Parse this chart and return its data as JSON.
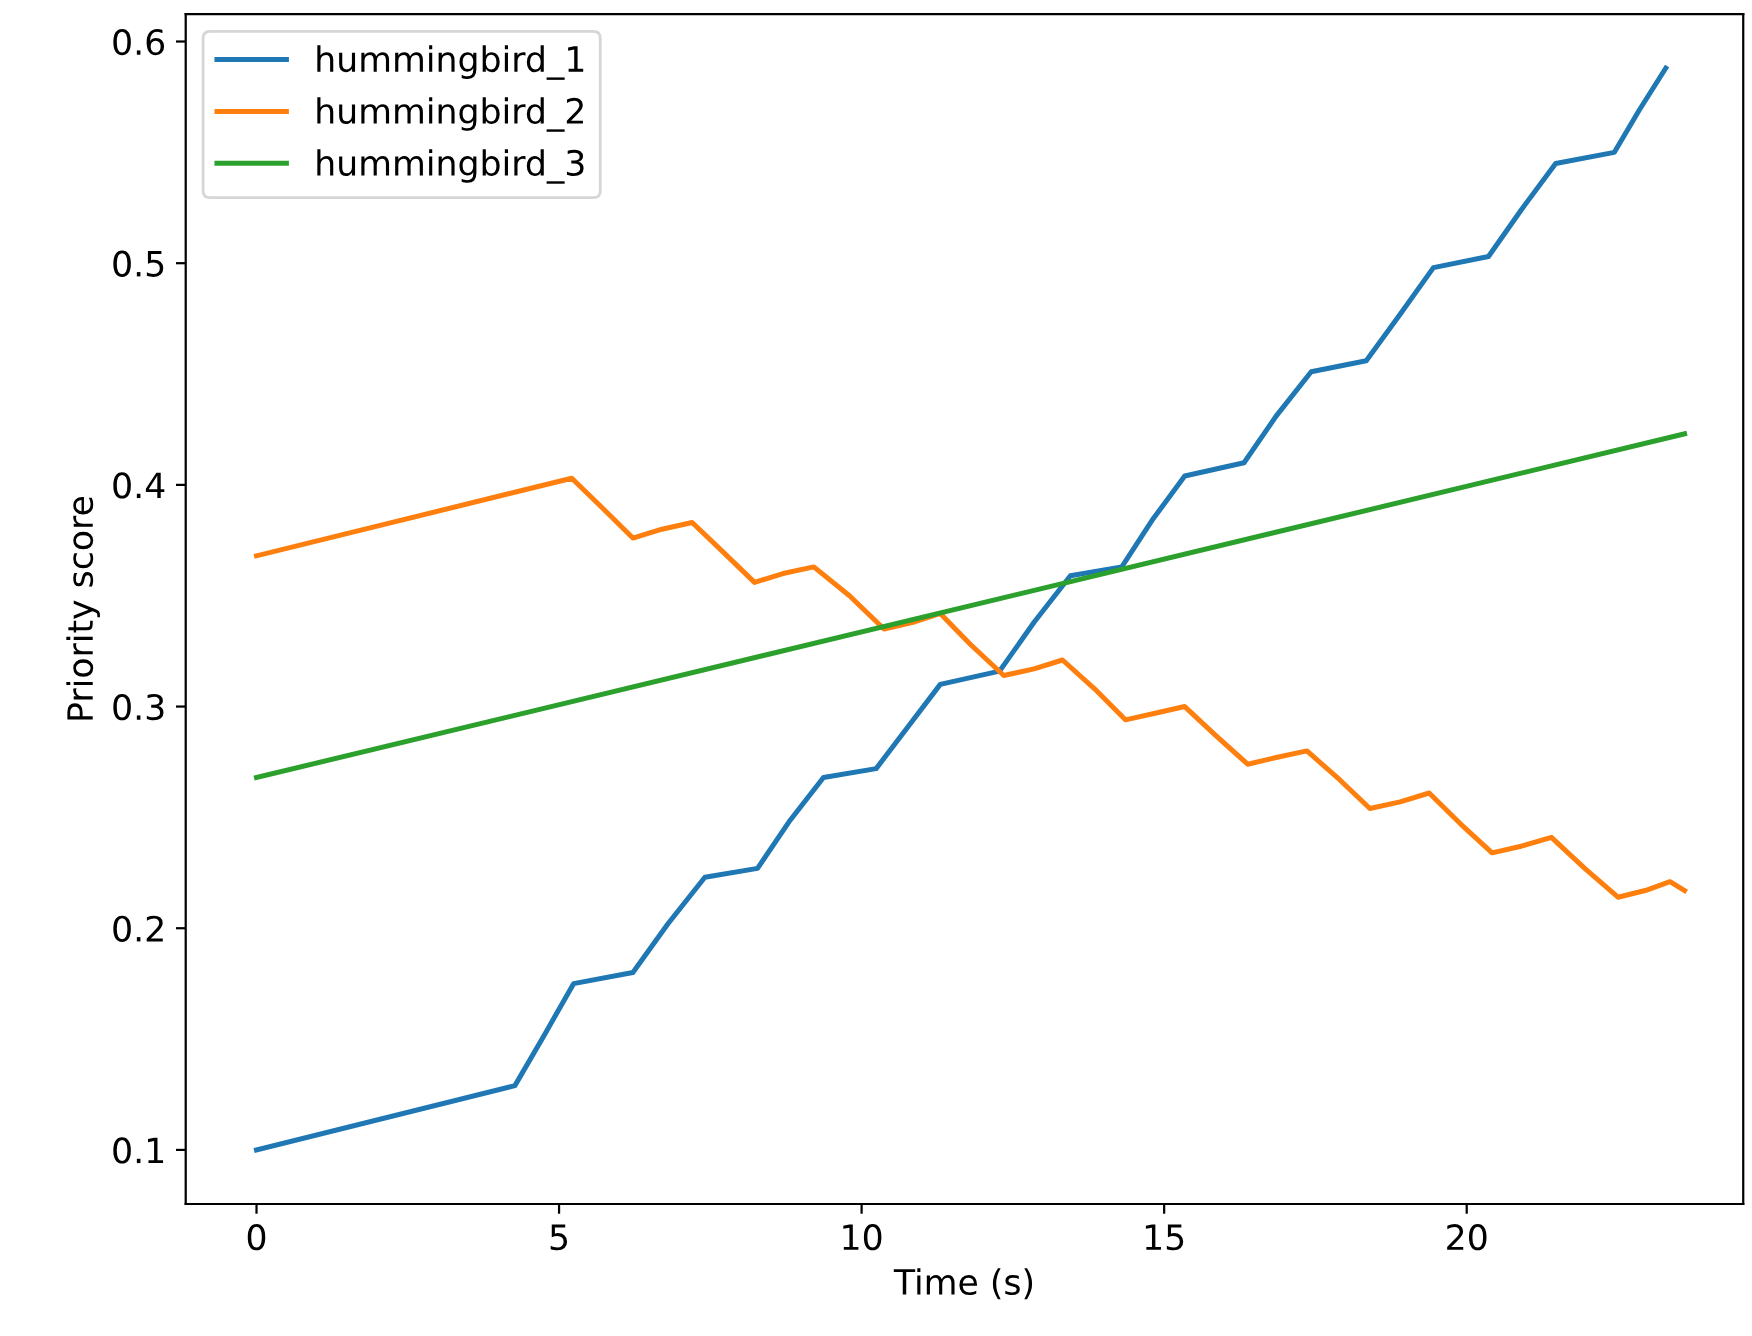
{
  "chart_data": {
    "type": "line",
    "xlabel": "Time (s)",
    "ylabel": "Priority score",
    "xlim": [
      -1.17,
      24.57
    ],
    "xticks": [
      0,
      5,
      10,
      15,
      20
    ],
    "ylim": [
      0.0756,
      0.6124
    ],
    "yticks": [
      0.1,
      0.2,
      0.3,
      0.4,
      0.5,
      0.6
    ],
    "legend": "top left",
    "grid": false,
    "marker": "none",
    "line_style": "solid",
    "series": [
      {
        "name": "hummingbird_1",
        "color": "#1f77b4",
        "x": [
          0,
          4.27,
          4.76,
          5.24,
          6.22,
          6.8,
          7.41,
          8.28,
          8.8,
          9.37,
          10.24,
          10.77,
          11.3,
          12.28,
          12.85,
          13.45,
          14.3,
          14.8,
          15.34,
          16.32,
          16.85,
          17.43,
          18.34,
          18.9,
          19.45,
          20.36,
          20.9,
          21.47,
          22.44,
          22.85,
          23.29
        ],
        "values": [
          0.1,
          0.129,
          0.152,
          0.175,
          0.18,
          0.202,
          0.223,
          0.227,
          0.248,
          0.268,
          0.272,
          0.291,
          0.31,
          0.316,
          0.338,
          0.359,
          0.363,
          0.384,
          0.404,
          0.41,
          0.431,
          0.451,
          0.456,
          0.477,
          0.498,
          0.503,
          0.524,
          0.545,
          0.55,
          0.569,
          0.588
        ]
      },
      {
        "name": "hummingbird_2",
        "color": "#ff7f0e",
        "x": [
          0,
          5.21,
          5.7,
          6.22,
          6.7,
          7.2,
          7.7,
          8.23,
          8.7,
          9.21,
          9.8,
          10.37,
          10.85,
          11.3,
          11.8,
          12.35,
          12.85,
          13.32,
          13.85,
          14.36,
          14.85,
          15.34,
          15.85,
          16.38,
          16.85,
          17.36,
          17.9,
          18.4,
          18.9,
          19.38,
          19.9,
          20.42,
          20.9,
          21.4,
          21.95,
          22.5,
          22.95,
          23.36,
          23.6
        ],
        "values": [
          0.368,
          0.403,
          0.39,
          0.376,
          0.38,
          0.383,
          0.37,
          0.356,
          0.36,
          0.363,
          0.35,
          0.335,
          0.338,
          0.342,
          0.328,
          0.314,
          0.317,
          0.321,
          0.308,
          0.294,
          0.297,
          0.3,
          0.287,
          0.274,
          0.277,
          0.28,
          0.267,
          0.254,
          0.257,
          0.261,
          0.247,
          0.234,
          0.237,
          0.241,
          0.227,
          0.214,
          0.217,
          0.221,
          0.217
        ]
      },
      {
        "name": "hummingbird_3",
        "color": "#2ca02c",
        "x": [
          0,
          23.6
        ],
        "values": [
          0.268,
          0.423
        ]
      }
    ]
  }
}
